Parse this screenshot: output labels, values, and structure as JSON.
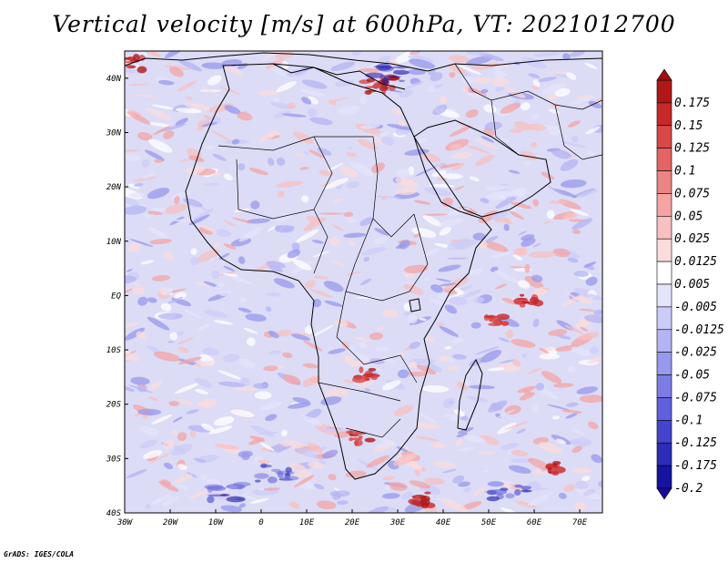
{
  "title": "Vertical velocity [m/s] at 600hPa, VT: 2021012700",
  "footer": "GrADS: IGES/COLA",
  "map": {
    "lon_range": [
      -30,
      75
    ],
    "lat_range": [
      -40,
      45
    ],
    "lat_ticks": [
      "40N",
      "30N",
      "20N",
      "10N",
      "EQ",
      "10S",
      "20S",
      "30S",
      "40S"
    ],
    "lon_ticks": [
      "30W",
      "20W",
      "10W",
      "0",
      "10E",
      "20E",
      "30E",
      "40E",
      "50E",
      "60E",
      "70E"
    ],
    "field": "vertical velocity",
    "units": "m/s",
    "level": "600hPa"
  },
  "colorbar": {
    "labels": [
      "0.175",
      "0.15",
      "0.125",
      "0.1",
      "0.075",
      "0.05",
      "0.025",
      "0.0125",
      "0.005",
      "-0.005",
      "-0.0125",
      "-0.025",
      "-0.05",
      "-0.075",
      "-0.1",
      "-0.125",
      "-0.175",
      "-0.2"
    ],
    "colors": [
      "#b01818",
      "#c82828",
      "#d84848",
      "#e46464",
      "#ec8484",
      "#f4a4a4",
      "#f8c0c0",
      "#fcdcdc",
      "#ffffff",
      "#e4e4fc",
      "#ccccf8",
      "#b4b4f4",
      "#9898ec",
      "#7c7ce4",
      "#6060dc",
      "#4444cc",
      "#2c2cb8",
      "#1414a0"
    ]
  }
}
